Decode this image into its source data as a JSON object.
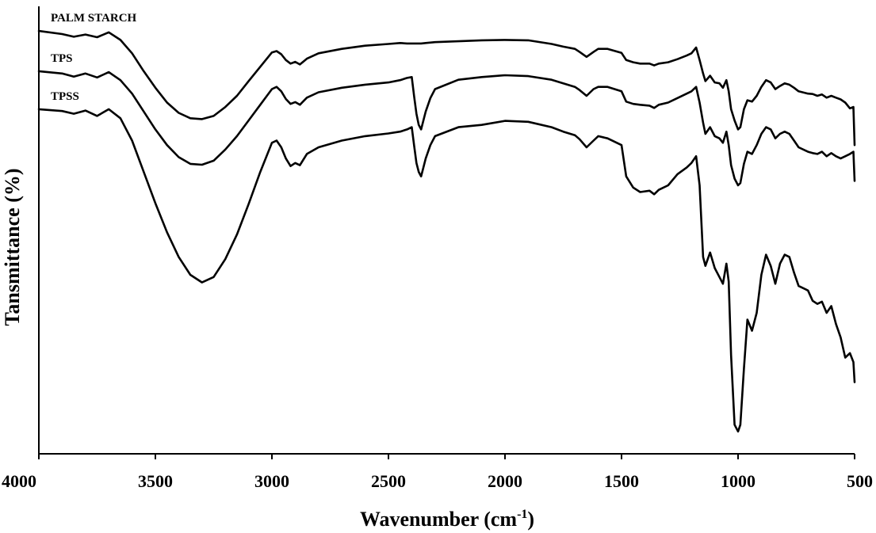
{
  "chart_data": {
    "type": "line",
    "title": "",
    "xlabel": "Wavenumber (cm",
    "xlabel_sup": "-1",
    "xlabel_close": ")",
    "ylabel": "Tansmittance (%)",
    "xlim": [
      4000,
      500
    ],
    "ylim": [
      0,
      100
    ],
    "x_reversed": true,
    "grid": false,
    "legend": "inline-labels",
    "xticks": [
      "4000",
      "3500",
      "3000",
      "2500",
      "2000",
      "1500",
      "1000",
      "500"
    ],
    "xtick_values": [
      4000,
      3500,
      3000,
      2500,
      2000,
      1500,
      1000,
      500
    ],
    "series": [
      {
        "name": "PALM STARCH",
        "x": [
          4000,
          3900,
          3850,
          3800,
          3750,
          3700,
          3650,
          3600,
          3550,
          3500,
          3450,
          3400,
          3350,
          3300,
          3250,
          3200,
          3150,
          3100,
          3050,
          3000,
          2980,
          2960,
          2940,
          2920,
          2900,
          2880,
          2850,
          2800,
          2700,
          2600,
          2500,
          2450,
          2420,
          2400,
          2380,
          2360,
          2340,
          2300,
          2200,
          2100,
          2000,
          1900,
          1800,
          1750,
          1700,
          1680,
          1650,
          1620,
          1600,
          1560,
          1500,
          1480,
          1450,
          1420,
          1380,
          1360,
          1340,
          1300,
          1260,
          1220,
          1200,
          1180,
          1165,
          1150,
          1140,
          1120,
          1100,
          1080,
          1065,
          1050,
          1040,
          1030,
          1015,
          1000,
          990,
          975,
          960,
          940,
          920,
          900,
          880,
          860,
          840,
          820,
          800,
          780,
          760,
          740,
          700,
          680,
          660,
          640,
          620,
          600,
          580,
          560,
          540,
          520,
          505,
          500
        ],
        "y": [
          94.5,
          93.8,
          93.2,
          93.7,
          93.1,
          94.2,
          92.5,
          89.5,
          85.5,
          81.8,
          78.5,
          76.2,
          75.0,
          74.8,
          75.5,
          77.5,
          80.0,
          83.3,
          86.5,
          89.7,
          90.0,
          89.3,
          88.0,
          87.2,
          87.6,
          87.0,
          88.3,
          89.5,
          90.5,
          91.2,
          91.6,
          91.8,
          91.7,
          91.7,
          91.7,
          91.7,
          91.8,
          92.0,
          92.2,
          92.4,
          92.5,
          92.4,
          91.6,
          91.0,
          90.5,
          89.8,
          88.7,
          89.8,
          90.5,
          90.5,
          89.6,
          88.0,
          87.5,
          87.2,
          87.2,
          86.8,
          87.2,
          87.5,
          88.2,
          89.0,
          89.5,
          90.8,
          88.0,
          85.0,
          83.3,
          84.5,
          83.0,
          82.8,
          81.8,
          83.5,
          81.0,
          77.0,
          74.5,
          72.5,
          73.0,
          77.0,
          79.0,
          78.7,
          80.0,
          82.0,
          83.5,
          83.0,
          81.5,
          82.2,
          82.8,
          82.5,
          81.8,
          81.0,
          80.5,
          80.4,
          80.0,
          80.3,
          79.6,
          80.0,
          79.6,
          79.2,
          78.5,
          77.2,
          77.5,
          69.0
        ]
      },
      {
        "name": "TPS",
        "x": [
          4000,
          3900,
          3850,
          3800,
          3750,
          3700,
          3650,
          3600,
          3550,
          3500,
          3450,
          3400,
          3350,
          3300,
          3250,
          3200,
          3150,
          3100,
          3050,
          3000,
          2980,
          2960,
          2940,
          2920,
          2900,
          2880,
          2850,
          2800,
          2700,
          2600,
          2500,
          2450,
          2420,
          2400,
          2390,
          2380,
          2370,
          2360,
          2350,
          2340,
          2320,
          2300,
          2200,
          2100,
          2000,
          1900,
          1800,
          1750,
          1700,
          1680,
          1650,
          1620,
          1600,
          1560,
          1500,
          1480,
          1450,
          1420,
          1380,
          1360,
          1340,
          1300,
          1260,
          1220,
          1200,
          1180,
          1165,
          1150,
          1140,
          1120,
          1100,
          1080,
          1065,
          1050,
          1040,
          1030,
          1015,
          1000,
          990,
          975,
          960,
          940,
          920,
          900,
          880,
          860,
          840,
          820,
          800,
          780,
          760,
          740,
          700,
          680,
          660,
          640,
          620,
          600,
          580,
          560,
          540,
          520,
          505,
          500
        ],
        "y": [
          85.5,
          85.0,
          84.3,
          85.0,
          84.1,
          85.3,
          83.5,
          80.5,
          76.5,
          72.5,
          69.0,
          66.3,
          64.8,
          64.6,
          65.5,
          68.0,
          71.0,
          74.5,
          78.0,
          81.5,
          82.0,
          81.0,
          79.3,
          78.2,
          78.6,
          78.0,
          79.6,
          80.8,
          81.8,
          82.5,
          83.0,
          83.5,
          84.0,
          84.2,
          80.0,
          76.0,
          73.5,
          72.5,
          74.5,
          76.5,
          79.5,
          81.5,
          83.6,
          84.2,
          84.6,
          84.4,
          83.6,
          82.8,
          82.0,
          81.3,
          80.0,
          81.5,
          82.0,
          82.0,
          81.0,
          78.7,
          78.2,
          78.0,
          77.8,
          77.3,
          78.0,
          78.5,
          79.5,
          80.5,
          81.0,
          82.0,
          78.5,
          74.0,
          71.5,
          73.0,
          71.0,
          70.5,
          69.5,
          72.0,
          69.0,
          64.5,
          61.5,
          60.0,
          60.5,
          64.8,
          67.5,
          67.0,
          69.0,
          71.5,
          73.0,
          72.5,
          70.5,
          71.5,
          72.0,
          71.5,
          70.0,
          68.5,
          67.5,
          67.2,
          67.0,
          67.5,
          66.5,
          67.2,
          66.5,
          66.0,
          66.5,
          67.0,
          67.5,
          61.0
        ]
      },
      {
        "name": "TPSS",
        "x": [
          4000,
          3900,
          3850,
          3800,
          3750,
          3700,
          3650,
          3600,
          3550,
          3500,
          3450,
          3400,
          3350,
          3300,
          3250,
          3200,
          3150,
          3100,
          3050,
          3000,
          2980,
          2960,
          2940,
          2920,
          2900,
          2880,
          2850,
          2800,
          2700,
          2600,
          2500,
          2450,
          2420,
          2400,
          2390,
          2380,
          2370,
          2360,
          2350,
          2340,
          2320,
          2300,
          2200,
          2100,
          2000,
          1900,
          1800,
          1750,
          1700,
          1680,
          1650,
          1620,
          1600,
          1560,
          1500,
          1480,
          1450,
          1420,
          1380,
          1360,
          1340,
          1300,
          1260,
          1220,
          1200,
          1180,
          1165,
          1150,
          1140,
          1120,
          1100,
          1080,
          1065,
          1050,
          1040,
          1030,
          1015,
          1000,
          990,
          975,
          960,
          940,
          920,
          900,
          880,
          860,
          840,
          820,
          800,
          780,
          760,
          740,
          700,
          680,
          660,
          640,
          620,
          600,
          580,
          560,
          540,
          520,
          505,
          500
        ],
        "y": [
          77.0,
          76.6,
          76.0,
          76.7,
          75.5,
          77.0,
          75.0,
          70.0,
          63.0,
          56.0,
          49.5,
          44.0,
          40.0,
          38.3,
          39.5,
          43.5,
          49.0,
          55.8,
          63.0,
          69.5,
          70.0,
          68.5,
          66.0,
          64.3,
          65.0,
          64.5,
          67.0,
          68.5,
          70.0,
          71.0,
          71.6,
          72.0,
          72.5,
          73.0,
          69.0,
          65.0,
          63.0,
          62.0,
          64.0,
          66.0,
          69.0,
          71.0,
          73.0,
          73.5,
          74.4,
          74.2,
          73.0,
          72.0,
          71.2,
          70.3,
          68.5,
          70.0,
          71.0,
          70.5,
          69.0,
          62.0,
          59.5,
          58.5,
          58.8,
          58.0,
          59.0,
          60.0,
          62.5,
          64.0,
          65.0,
          66.5,
          60.0,
          44.0,
          42.0,
          45.0,
          41.5,
          39.5,
          38.0,
          42.5,
          38.5,
          22.0,
          6.5,
          5.0,
          6.5,
          19.0,
          30.0,
          27.5,
          31.5,
          40.0,
          44.5,
          42.0,
          38.0,
          42.5,
          44.5,
          44.0,
          40.5,
          37.5,
          36.5,
          34.2,
          33.5,
          34.0,
          31.5,
          33.0,
          29.0,
          26.0,
          21.5,
          22.5,
          20.5,
          16.0
        ]
      }
    ]
  }
}
